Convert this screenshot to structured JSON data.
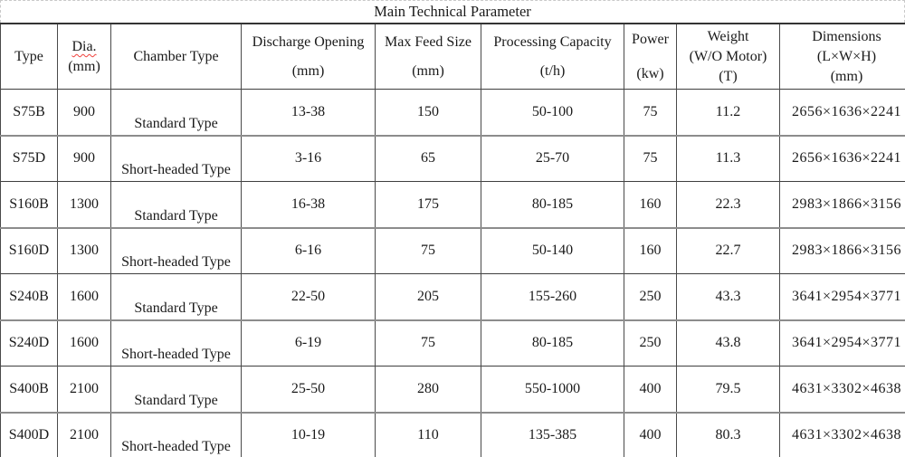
{
  "title": "Main Technical Parameter",
  "table": {
    "columns": [
      {
        "id": "type",
        "lines": [
          "Type"
        ]
      },
      {
        "id": "dia",
        "lines": [
          "Dia.",
          "(mm)"
        ],
        "spell_underline": true
      },
      {
        "id": "chamber",
        "lines": [
          "Chamber Type"
        ]
      },
      {
        "id": "discharge",
        "lines": [
          "Discharge Opening",
          "(mm)"
        ]
      },
      {
        "id": "maxfeed",
        "lines": [
          "Max Feed Size",
          "(mm)"
        ]
      },
      {
        "id": "capacity",
        "lines": [
          "Processing Capacity",
          "(t/h)"
        ]
      },
      {
        "id": "power",
        "lines": [
          "Power",
          "(kw)"
        ]
      },
      {
        "id": "weight",
        "lines": [
          "Weight",
          "(W/O Motor)",
          "(T)"
        ]
      },
      {
        "id": "dimensions",
        "lines": [
          "Dimensions",
          "(L×W×H)",
          "(mm)"
        ]
      }
    ],
    "rows": [
      [
        "S75B",
        "900",
        "Standard Type",
        "13-38",
        "150",
        "50-100",
        "75",
        "11.2",
        "2656×1636×2241"
      ],
      [
        "S75D",
        "900",
        "Short-headed Type",
        "3-16",
        "65",
        "25-70",
        "75",
        "11.3",
        "2656×1636×2241"
      ],
      [
        "S160B",
        "1300",
        "Standard Type",
        "16-38",
        "175",
        "80-185",
        "160",
        "22.3",
        "2983×1866×3156"
      ],
      [
        "S160D",
        "1300",
        "Short-headed Type",
        "6-16",
        "75",
        "50-140",
        "160",
        "22.7",
        "2983×1866×3156"
      ],
      [
        "S240B",
        "1600",
        "Standard Type",
        "22-50",
        "205",
        "155-260",
        "250",
        "43.3",
        "3641×2954×3771"
      ],
      [
        "S240D",
        "1600",
        "Short-headed Type",
        "6-19",
        "75",
        "80-185",
        "250",
        "43.8",
        "3641×2954×3771"
      ],
      [
        "S400B",
        "2100",
        "Standard Type",
        "25-50",
        "280",
        "550-1000",
        "400",
        "79.5",
        "4631×3302×4638"
      ],
      [
        "S400D",
        "2100",
        "Short-headed Type",
        "10-19",
        "110",
        "135-385",
        "400",
        "80.3",
        "4631×3302×4638"
      ]
    ],
    "colors": {
      "text": "#1a1a1a",
      "grid_dark": "#4a4a4a",
      "grid_gray": "#8c8c8c",
      "dashed_gridline": "#c9c9c9",
      "spellcheck_underline": "#f0413c"
    }
  }
}
